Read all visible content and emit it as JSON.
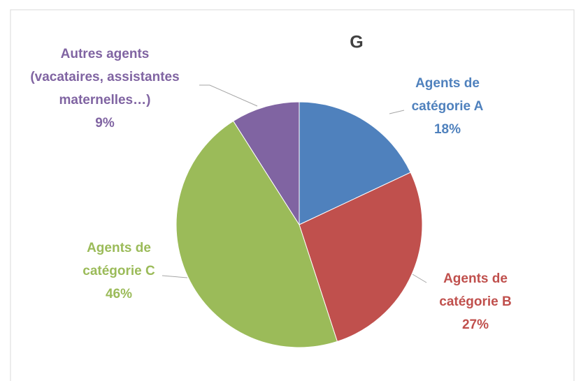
{
  "chart_data": {
    "type": "pie",
    "title": "G",
    "categories": [
      "Agents de catégorie A",
      "Agents de catégorie B",
      "Agents de catégorie C",
      "Autres agents (vacataires, assistantes maternelles…)"
    ],
    "values": [
      18,
      27,
      46,
      9
    ],
    "value_labels": [
      "18%",
      "27%",
      "46%",
      "9%"
    ],
    "colors": [
      "#4f81bd",
      "#c0504d",
      "#9bbb59",
      "#8064a2"
    ]
  }
}
